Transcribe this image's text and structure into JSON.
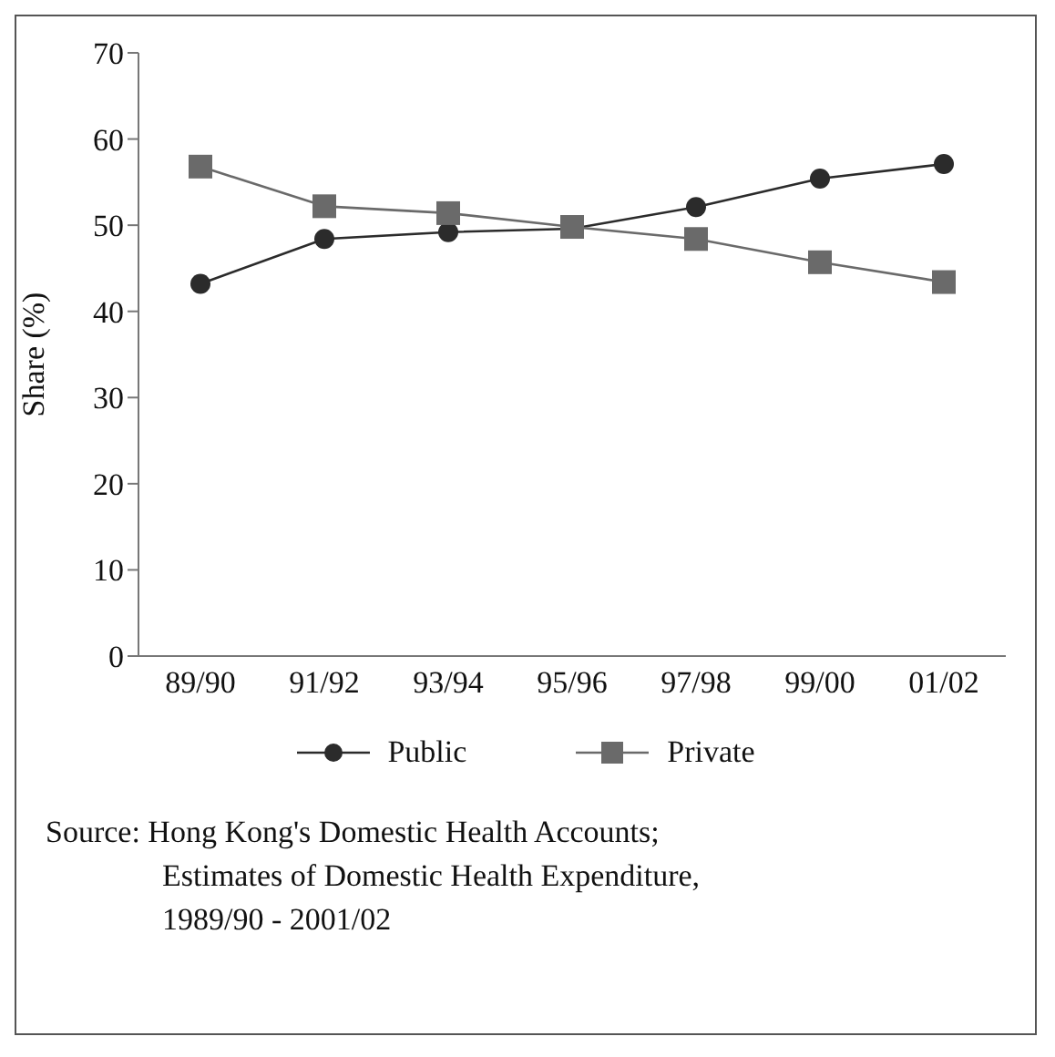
{
  "chart_data": {
    "type": "line",
    "ylabel": "Share (%)",
    "categories": [
      "89/90",
      "91/92",
      "93/94",
      "95/96",
      "97/98",
      "99/00",
      "01/02"
    ],
    "series": [
      {
        "name": "Public",
        "color": "#2b2b2b",
        "marker": "circle",
        "values": [
          43.2,
          48.4,
          49.2,
          49.6,
          52.1,
          55.4,
          57.1
        ]
      },
      {
        "name": "Private",
        "color": "#6a6a6a",
        "marker": "square",
        "values": [
          56.8,
          52.2,
          51.4,
          49.8,
          48.4,
          45.7,
          43.4
        ]
      }
    ],
    "ylim": [
      0,
      70
    ],
    "yticks": [
      0,
      10,
      20,
      30,
      40,
      50,
      60,
      70
    ],
    "grid": false,
    "legend": "bottom",
    "annotations": [
      "Source: Hong Kong's Domestic Health Accounts; Estimates of Domestic Health Expenditure, 1989/90 - 2001/02"
    ]
  }
}
